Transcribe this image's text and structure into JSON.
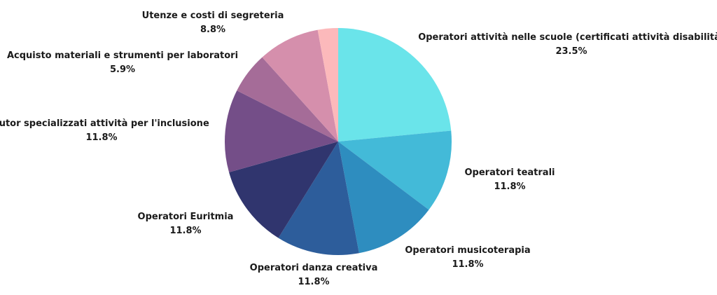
{
  "chart_data": {
    "type": "pie",
    "title": "",
    "slices": [
      {
        "label": "Operatori attività nelle scuole (certificati attività disabilità)",
        "value": 23.5,
        "display": "23.5%",
        "color": "#6ae4ea"
      },
      {
        "label": "Operatori teatrali",
        "value": 11.8,
        "display": "11.8%",
        "color": "#43bad8"
      },
      {
        "label": "Operatori musicoterapia",
        "value": 11.8,
        "display": "11.8%",
        "color": "#2e8dbf"
      },
      {
        "label": "Operatori danza creativa",
        "value": 11.8,
        "display": "11.8%",
        "color": "#2d5d9b"
      },
      {
        "label": "Operatori Euritmia",
        "value": 11.8,
        "display": "11.8%",
        "color": "#30356e"
      },
      {
        "label": "Tutor specializzati attività per l'inclusione",
        "value": 11.8,
        "display": "11.8%",
        "color": "#744e88"
      },
      {
        "label": "Acquisto materiali e strumenti per laboratori",
        "value": 5.9,
        "display": "5.9%",
        "color": "#a56c98"
      },
      {
        "label": "Utenze e costi di segreteria",
        "value": 8.8,
        "display": "8.8%",
        "color": "#d58fac"
      },
      {
        "label": "",
        "value": 2.9,
        "display": "",
        "color": "#fcb9bb"
      }
    ]
  }
}
